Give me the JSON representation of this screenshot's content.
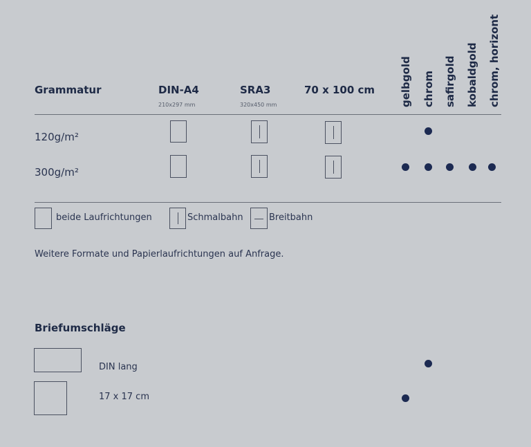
{
  "table": {
    "header_label": "Grammatur",
    "formats": [
      {
        "name": "DIN-A4",
        "size": "210x297 mm"
      },
      {
        "name": "SRA3",
        "size": "320x450 mm"
      },
      {
        "name": "70 x 100 cm",
        "size": ""
      }
    ],
    "finishes": [
      "gelbgold",
      "chrom",
      "safirgold",
      "kobaldgold",
      "chrom, horizont"
    ],
    "rows": [
      {
        "label": "120g/m²",
        "grain": [
          "beide",
          "schmal",
          "schmal"
        ],
        "finishes": [
          false,
          true,
          false,
          false,
          false
        ]
      },
      {
        "label": "300g/m²",
        "grain": [
          "beide",
          "schmal",
          "schmal"
        ],
        "finishes": [
          true,
          true,
          true,
          true,
          true
        ]
      }
    ]
  },
  "legend": {
    "both": "beide Laufrichtungen",
    "narrow": "Schmalbahn",
    "wide": "Breitbahn"
  },
  "note": "Weitere Formate und Papierlaufrichtungen auf Anfrage.",
  "envelopes": {
    "title": "Briefumschläge",
    "items": [
      {
        "label": "DIN lang",
        "finishes": [
          false,
          true,
          false,
          false,
          false
        ]
      },
      {
        "label": "17 x 17 cm",
        "finishes": [
          true,
          false,
          false,
          false,
          false
        ]
      }
    ]
  },
  "colors": {
    "text": "#1e2a46",
    "dot": "#1c2a52",
    "paper": "#c8cbcf"
  }
}
